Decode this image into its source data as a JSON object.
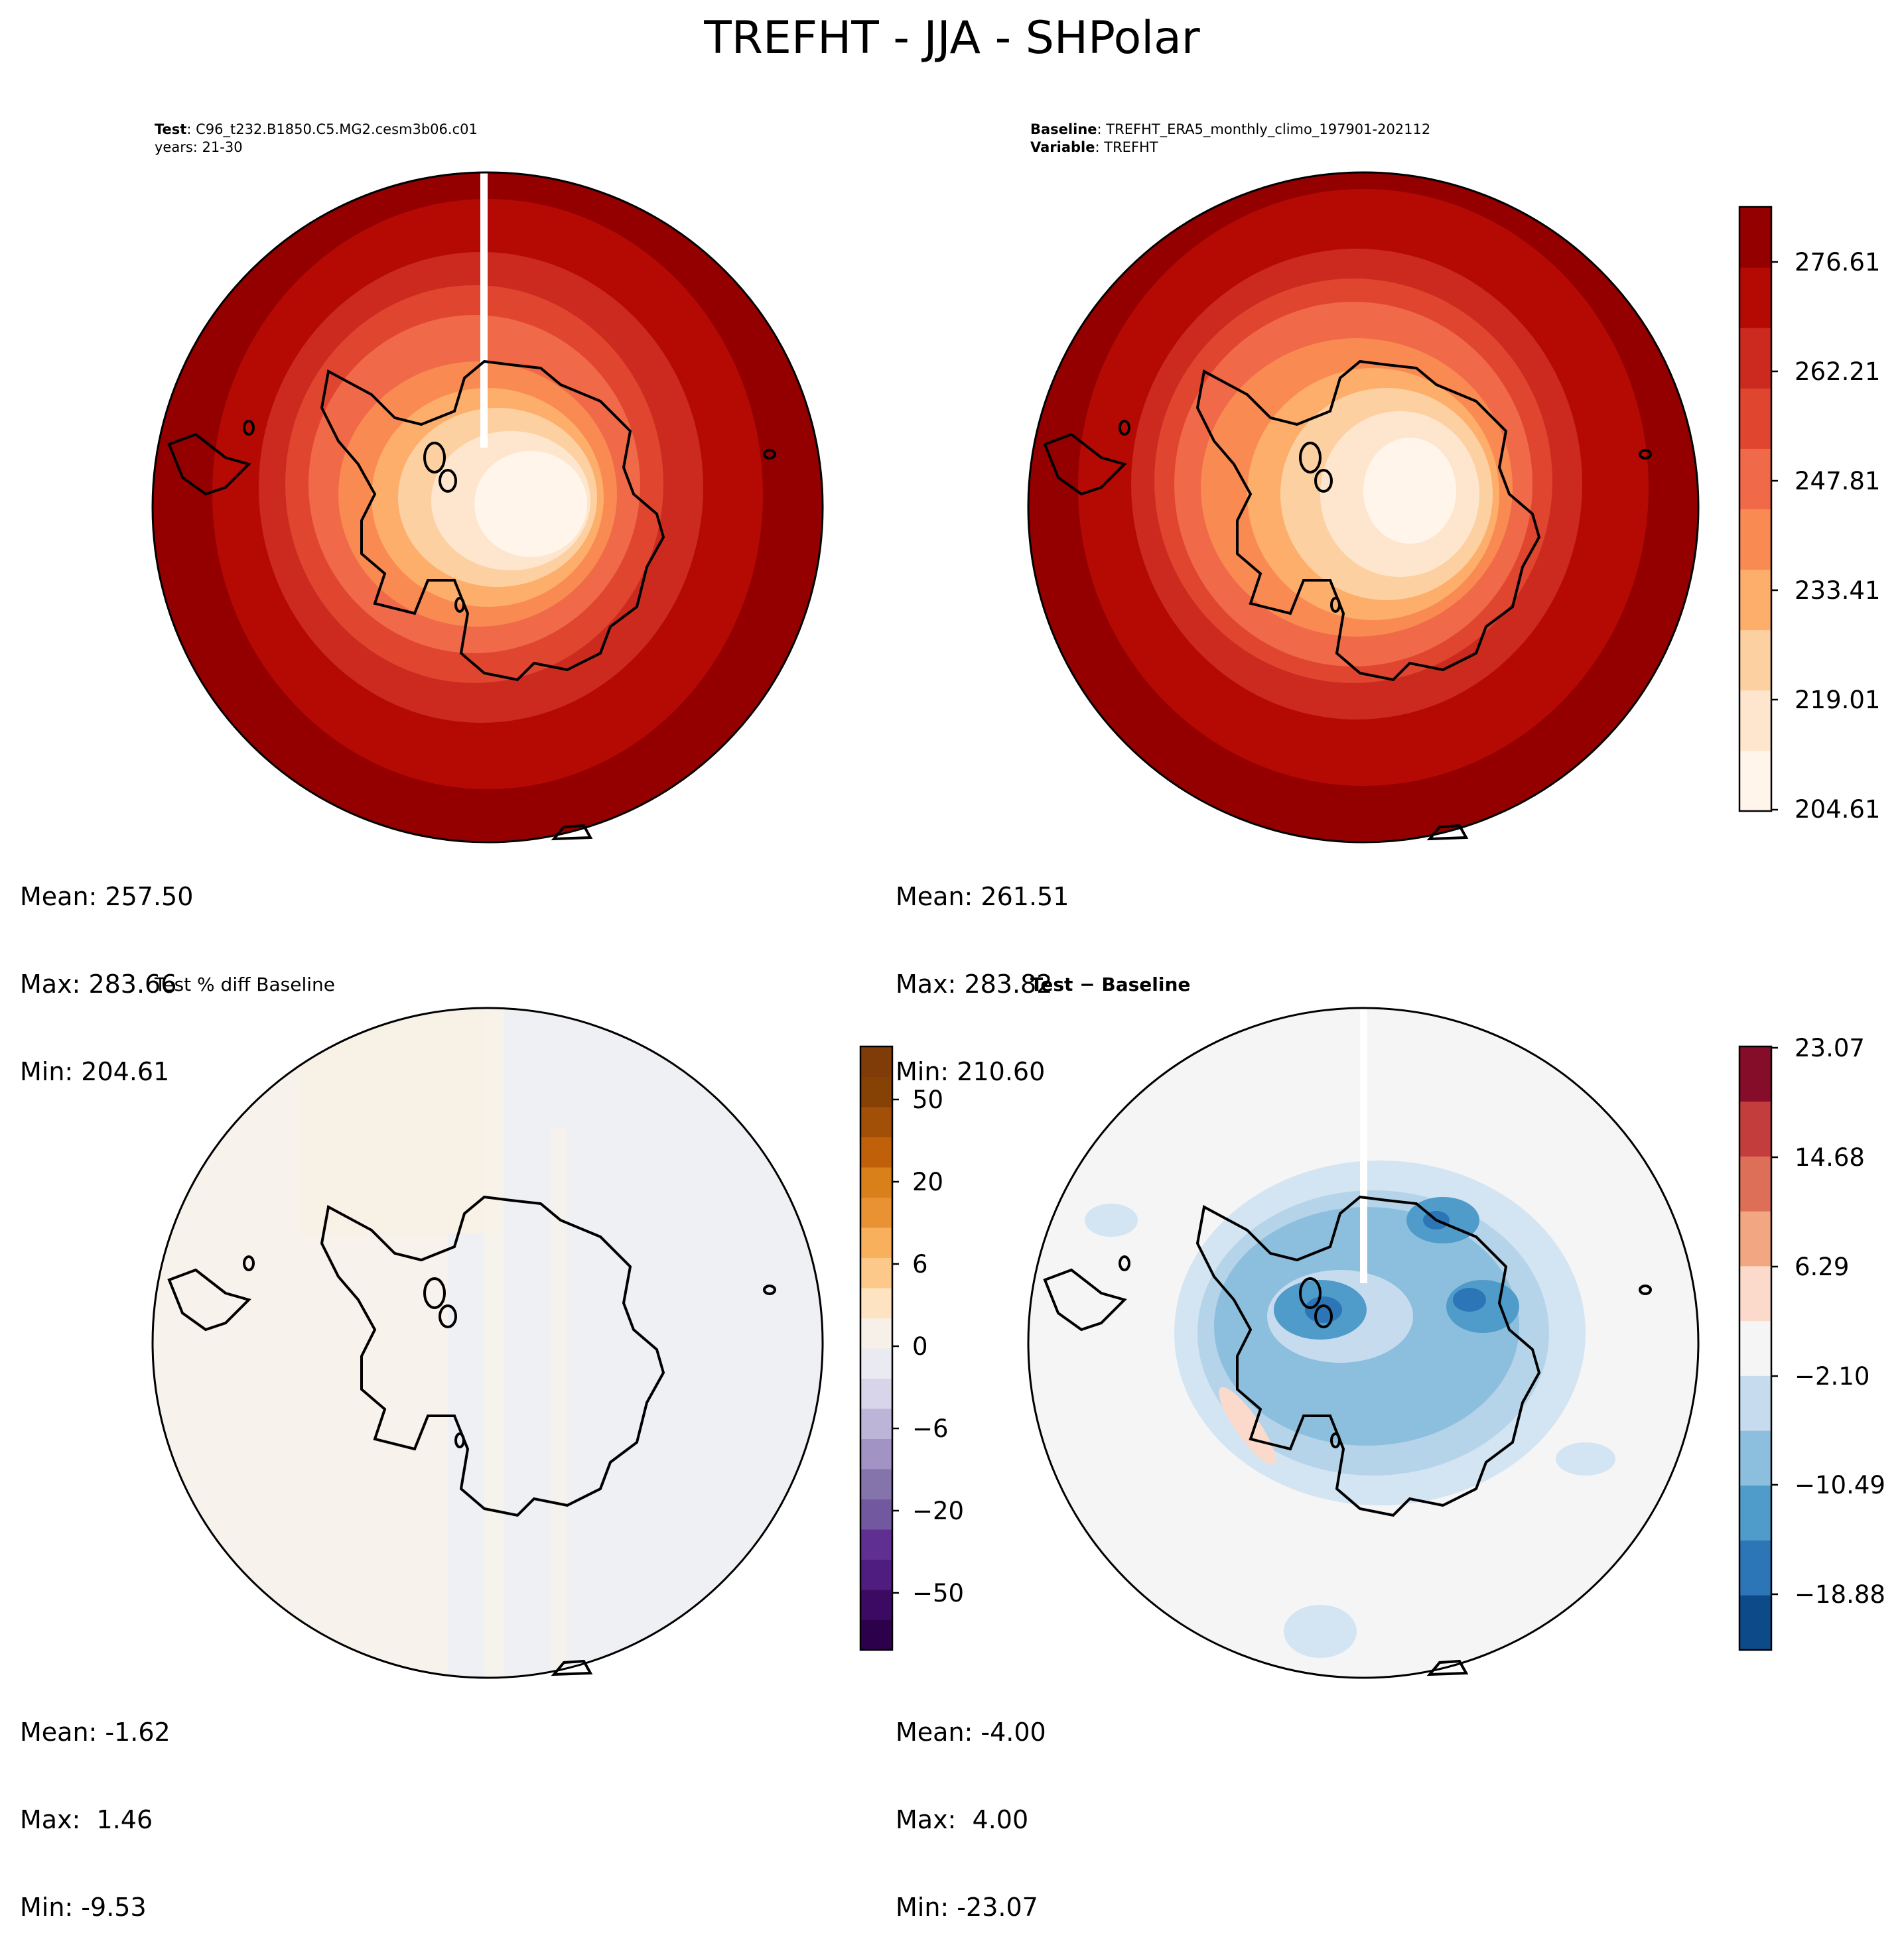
{
  "title": "TREFHT - JJA - SHPolar",
  "panels": {
    "test": {
      "header": [
        {
          "key": "Test",
          "sep": ": ",
          "value": "C96_t232.B1850.C5.MG2.cesm3b06.c01"
        },
        {
          "key": "",
          "sep": "",
          "value": "years: 21-30"
        }
      ],
      "stats": {
        "mean": "Mean: 257.50",
        "max": "Max: 283.66",
        "min": "Min: 204.61"
      }
    },
    "baseline": {
      "header": [
        {
          "key": "Baseline",
          "sep": ": ",
          "value": "TREFHT_ERA5_monthly_climo_197901-202112"
        },
        {
          "key": "Variable",
          "sep": ": ",
          "value": "TREFHT"
        }
      ],
      "stats": {
        "mean": "Mean: 261.51",
        "max": "Max: 283.82",
        "min": "Min: 210.60"
      }
    },
    "pct_diff": {
      "title": "Test % diff Baseline",
      "stats": {
        "mean": "Mean: -1.62",
        "max": "Max:  1.46",
        "min": "Min: -9.53"
      }
    },
    "diff": {
      "title": "Test − Baseline",
      "stats": {
        "mean": "Mean: -4.00",
        "max": "Max:  4.00",
        "min": "Min: -23.07"
      }
    }
  },
  "colorbars": {
    "temperature": {
      "labels": [
        "276.61",
        "262.21",
        "247.81",
        "233.41",
        "219.01",
        "204.61"
      ],
      "colors": [
        "#fff5eb",
        "#fee6ce",
        "#fdd0a2",
        "#fdae6b",
        "#f98a52",
        "#f06948",
        "#e04530",
        "#cc2a1e",
        "#b50a04",
        "#940000"
      ]
    },
    "pct_diff": {
      "labels": [
        "50",
        "20",
        "6",
        "0",
        "−6",
        "−20",
        "−50"
      ],
      "colors": [
        "#2d004b",
        "#3d0a63",
        "#4f1c7f",
        "#5f2f91",
        "#72599f",
        "#8573ab",
        "#a193c4",
        "#bdb5d8",
        "#d8d4e9",
        "#eaeaf2",
        "#f7f0e8",
        "#fde3c2",
        "#fdc98b",
        "#f8b05c",
        "#e89234",
        "#d9801a",
        "#c06009",
        "#a24f07",
        "#864105",
        "#7f3b08"
      ]
    },
    "diff": {
      "labels": [
        "23.07",
        "14.68",
        "6.29",
        "−2.10",
        "−10.49",
        "−18.88"
      ],
      "colors": [
        "#0d4a8a",
        "#2c75b6",
        "#4f9bca",
        "#8cbfdd",
        "#c6dbee",
        "#f5f5f5",
        "#fbdacb",
        "#f3a682",
        "#dd6e58",
        "#c23d3c",
        "#860d2a"
      ]
    }
  }
}
